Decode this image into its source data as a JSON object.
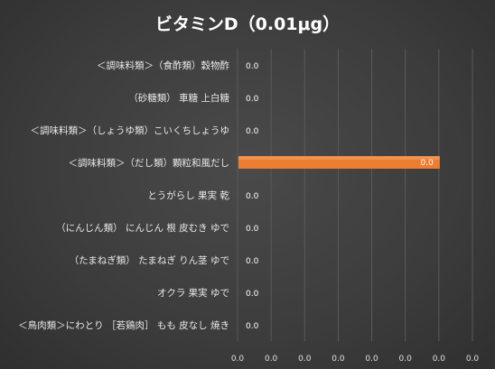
{
  "chart_data": {
    "type": "bar",
    "orientation": "horizontal",
    "title": "ビタミンD（0.01μg）",
    "categories": [
      "＜調味料類＞（食酢類）穀物酢",
      "（砂糖類） 車糖 上白糖",
      "＜調味料類＞（しょうゆ類）こいくちしょうゆ",
      "＜調味料類＞（だし類）顆粒和風だし",
      "とうがらし 果実 乾",
      "（にんじん類） にんじん 根 皮むき ゆで",
      "（たまねぎ類） たまねぎ りん茎 ゆで",
      "オクラ 果実 ゆで",
      "＜鳥肉類＞にわとり ［若鶏肉］ もも 皮なし 焼き"
    ],
    "values": [
      0.0,
      0.0,
      0.0,
      0.0,
      0.0,
      0.0,
      0.0,
      0.0,
      0.0
    ],
    "data_labels": [
      "0.0",
      "0.0",
      "0.0",
      "0.0",
      "0.0",
      "0.0",
      "0.0",
      "0.0",
      "0.0"
    ],
    "bar_share": [
      0,
      0,
      0,
      1,
      0,
      0,
      0,
      0,
      0
    ],
    "x_tick_labels": [
      "0.0",
      "0.0",
      "0.0",
      "0.0",
      "0.0",
      "0.0",
      "0.0",
      "0.0"
    ],
    "bar_color": "#ED7D31",
    "grid": true,
    "legend": "none"
  }
}
